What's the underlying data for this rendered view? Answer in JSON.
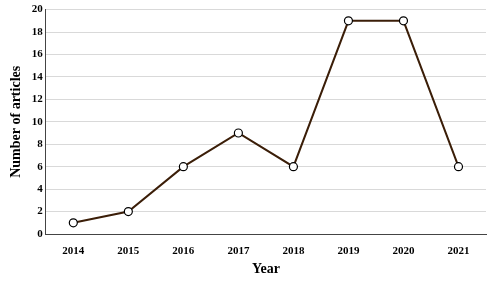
{
  "chart_data": {
    "type": "line",
    "x_label": "Year",
    "y_label": "Number of articles",
    "categories": [
      "2014",
      "2015",
      "2016",
      "2017",
      "2018",
      "2019",
      "2020",
      "2021"
    ],
    "values": [
      1,
      2,
      6,
      9,
      6,
      19,
      19,
      6
    ],
    "color": "#3b1e08",
    "marker": "circle",
    "line_style": "solid",
    "ylim": [
      0,
      20
    ],
    "yticks": [
      0,
      2,
      4,
      6,
      8,
      10,
      12,
      14,
      16,
      18,
      20
    ],
    "grid": true
  }
}
